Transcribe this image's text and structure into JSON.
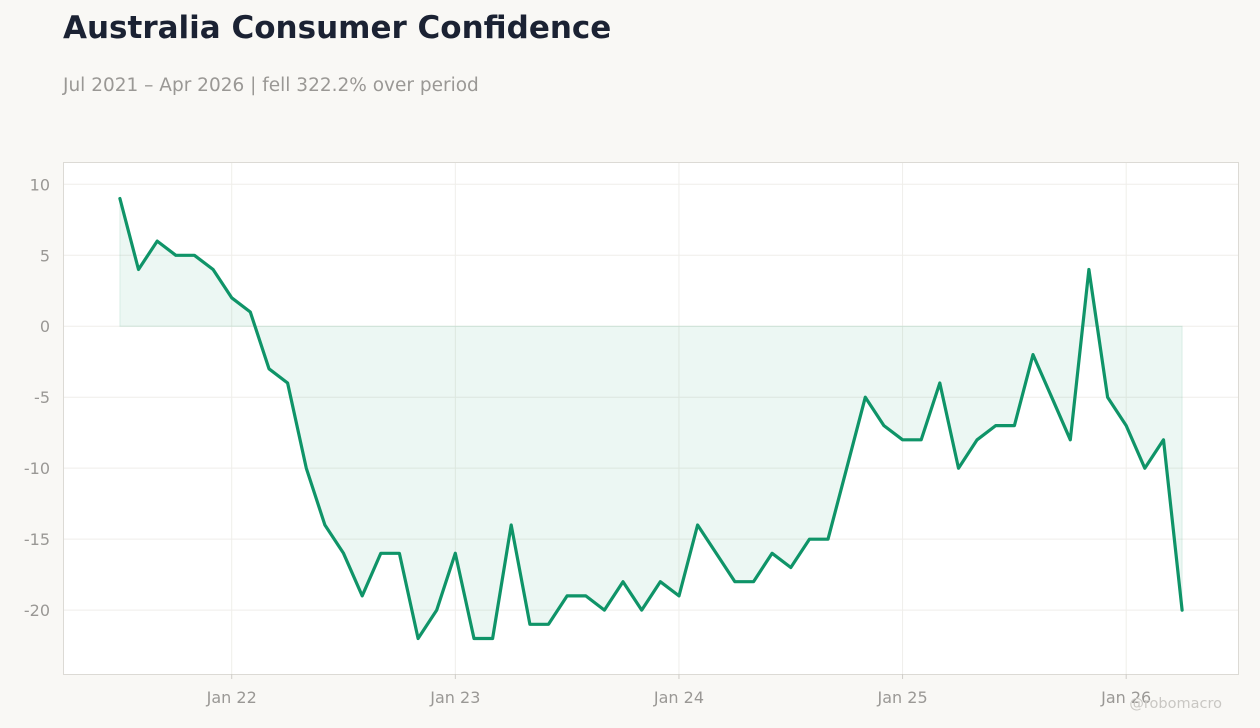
{
  "header": {
    "title": "Australia Consumer Confidence",
    "subtitle": "Jul 2021 – Apr 2026 | fell 322.2% over period"
  },
  "watermark": "@robomacro",
  "colors": {
    "line": "#0f9468",
    "fill": "#0f9468",
    "background": "#f9f8f5",
    "plot_background": "#ffffff",
    "grid": "#efeeea",
    "axis_text": "#9a9895",
    "title": "#1b2233"
  },
  "chart_data": {
    "type": "area",
    "title": "Australia Consumer Confidence",
    "subtitle": "Jul 2021 – Apr 2026 | fell 322.2% over period",
    "xlabel": "",
    "ylabel": "",
    "x_ticks": [
      {
        "label": "Jan 22",
        "date": "2022-01"
      },
      {
        "label": "Jan 23",
        "date": "2023-01"
      },
      {
        "label": "Jan 24",
        "date": "2024-01"
      },
      {
        "label": "Jan 25",
        "date": "2025-01"
      },
      {
        "label": "Jan 26",
        "date": "2026-01"
      }
    ],
    "y_ticks": [
      10,
      5,
      0,
      -5,
      -10,
      -15,
      -20
    ],
    "xlim": [
      "2021-04",
      "2026-07"
    ],
    "ylim": [
      -24.5,
      11.5
    ],
    "grid": true,
    "legend": "none",
    "series": [
      {
        "x": [
          "2021-07",
          "2021-08",
          "2021-09",
          "2021-10",
          "2021-11",
          "2021-12",
          "2022-01",
          "2022-02",
          "2022-03",
          "2022-04",
          "2022-05",
          "2022-06",
          "2022-07",
          "2022-08",
          "2022-09",
          "2022-10",
          "2022-11",
          "2022-12",
          "2023-01",
          "2023-02",
          "2023-03",
          "2023-04",
          "2023-05",
          "2023-06",
          "2023-07",
          "2023-08",
          "2023-09",
          "2023-10",
          "2023-11",
          "2023-12",
          "2024-01",
          "2024-02",
          "2024-03",
          "2024-04",
          "2024-05",
          "2024-06",
          "2024-07",
          "2024-08",
          "2024-09",
          "2024-10",
          "2024-11",
          "2024-12",
          "2025-01",
          "2025-02",
          "2025-03",
          "2025-04",
          "2025-05",
          "2025-06",
          "2025-07",
          "2025-08",
          "2025-09",
          "2025-10",
          "2025-11",
          "2025-12",
          "2026-01",
          "2026-02",
          "2026-03",
          "2026-04"
        ],
        "values": [
          9,
          4,
          6,
          5,
          5,
          4,
          2,
          1,
          -3,
          -4,
          -10,
          -14,
          -16,
          -19,
          -16,
          -16,
          -22,
          -20,
          -16,
          -22,
          -22,
          -14,
          -21,
          -21,
          -19,
          -19,
          -20,
          -18,
          -20,
          -18,
          -19,
          -14,
          -16,
          -18,
          -18,
          -16,
          -17,
          -15,
          -15,
          -10,
          -5,
          -7,
          -8,
          -8,
          -4,
          -10,
          -8,
          -7,
          -7,
          -2,
          -5,
          -8,
          4,
          -5,
          -7,
          -10,
          -8,
          -20
        ]
      }
    ]
  }
}
